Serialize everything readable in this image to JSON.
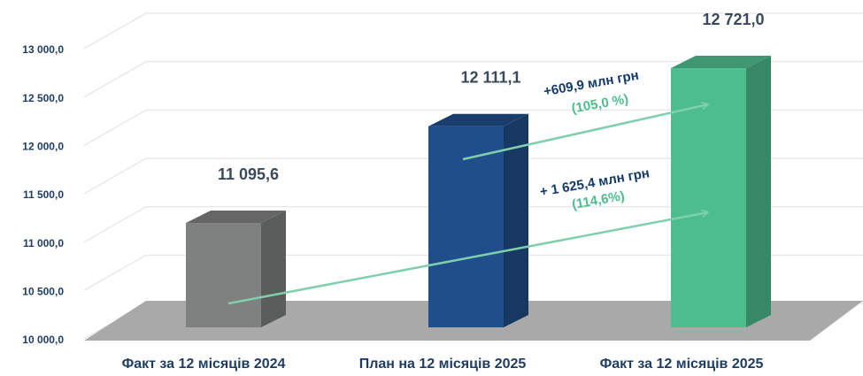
{
  "chart_data": {
    "type": "bar3d",
    "categories": [
      "Факт за 12 місяців 2024",
      "План на 12 місяців 2025",
      "Факт за 12 місяців 2025"
    ],
    "values": [
      11095.6,
      12111.1,
      12721.0
    ],
    "value_labels": [
      "11 095,6",
      "12 111,1",
      "12 721,0"
    ],
    "colors": [
      "#7f8080",
      "#1f4e8a",
      "#4dbd8d"
    ],
    "ylim": [
      10000,
      13000
    ],
    "yticks": [
      {
        "value": 10000,
        "label": "10 000,0"
      },
      {
        "value": 10500,
        "label": "10 500,0"
      },
      {
        "value": 11000,
        "label": "11 000,0"
      },
      {
        "value": 11500,
        "label": "11 500,0"
      },
      {
        "value": 12000,
        "label": "12 000,0"
      },
      {
        "value": 12500,
        "label": "12 500,0"
      },
      {
        "value": 13000,
        "label": "13 000,0"
      }
    ],
    "grid": true,
    "annotations": [
      {
        "text": "+609,9 млн грн",
        "percent": "(105,0 %)"
      },
      {
        "text": "+ 1 625,4 млн грн",
        "percent": "(114,6%)"
      }
    ]
  }
}
